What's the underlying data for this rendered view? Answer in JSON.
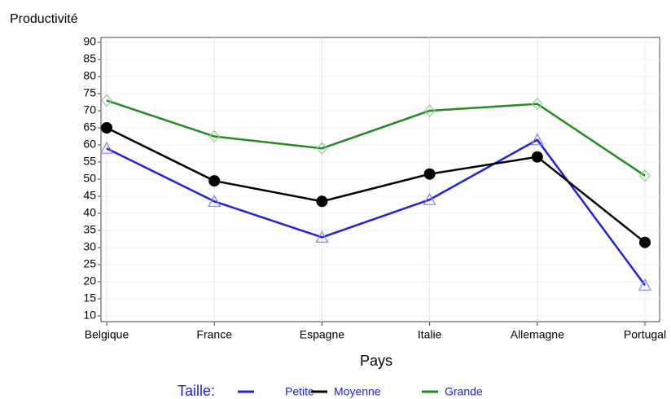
{
  "chart_data": {
    "type": "line",
    "y_label": "Productivité",
    "x_label": "Pays",
    "legend_title": "Taille:",
    "categories": [
      "Belgique",
      "France",
      "Espagne",
      "Italie",
      "Allemagne",
      "Portugal"
    ],
    "series": [
      {
        "name": "Petite",
        "color": "#2020e0",
        "marker": "triangle",
        "marker_color": "#8080ff",
        "values": [
          59,
          43.5,
          33,
          44,
          61.5,
          19
        ]
      },
      {
        "name": "Moyenne",
        "color": "#000000",
        "marker": "circle",
        "marker_color": "#000000",
        "values": [
          65,
          49.5,
          43.5,
          51.5,
          56.5,
          31.5
        ]
      },
      {
        "name": "Grande",
        "color": "#228b22",
        "marker": "diamond",
        "marker_color": "#90d090",
        "values": [
          73,
          62.5,
          59,
          70,
          72,
          51
        ]
      }
    ],
    "ylim": [
      10,
      90
    ],
    "yticks": [
      10,
      15,
      20,
      25,
      30,
      35,
      40,
      45,
      50,
      55,
      60,
      65,
      70,
      75,
      80,
      85,
      90
    ],
    "grid": true,
    "legend": "bottom"
  }
}
